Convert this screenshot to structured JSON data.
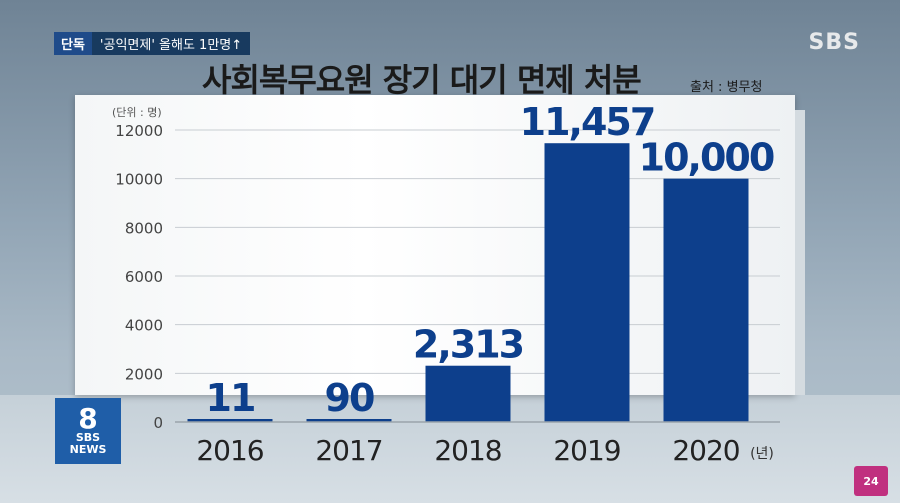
{
  "header": {
    "tag_label": "단독",
    "tag_headline": "'공익면제' 올해도 1만명↑",
    "broadcaster": "SBS",
    "title": "사회복무요원 장기 대기 면제 처분",
    "source": "출처 : 병무청"
  },
  "logos": {
    "bottom_left_number": "8",
    "bottom_left_sub1": "SBS",
    "bottom_left_sub2": "NEWS",
    "bottom_right": "24"
  },
  "chart_data": {
    "type": "bar",
    "title": "사회복무요원 장기 대기 면제 처분",
    "unit_label": "(단위 : 명)",
    "x_unit": "(년)",
    "categories": [
      "2016",
      "2017",
      "2018",
      "2019",
      "2020"
    ],
    "values": [
      11,
      90,
      2313,
      11457,
      10000
    ],
    "data_labels": [
      "11",
      "90",
      "2,313",
      "11,457",
      "10,000"
    ],
    "ylim": [
      0,
      12000
    ],
    "yticks": [
      0,
      2000,
      4000,
      6000,
      8000,
      10000,
      12000
    ],
    "grid": true,
    "bar_color": "#0d3f8c",
    "label_color": "#0d3f8c"
  }
}
